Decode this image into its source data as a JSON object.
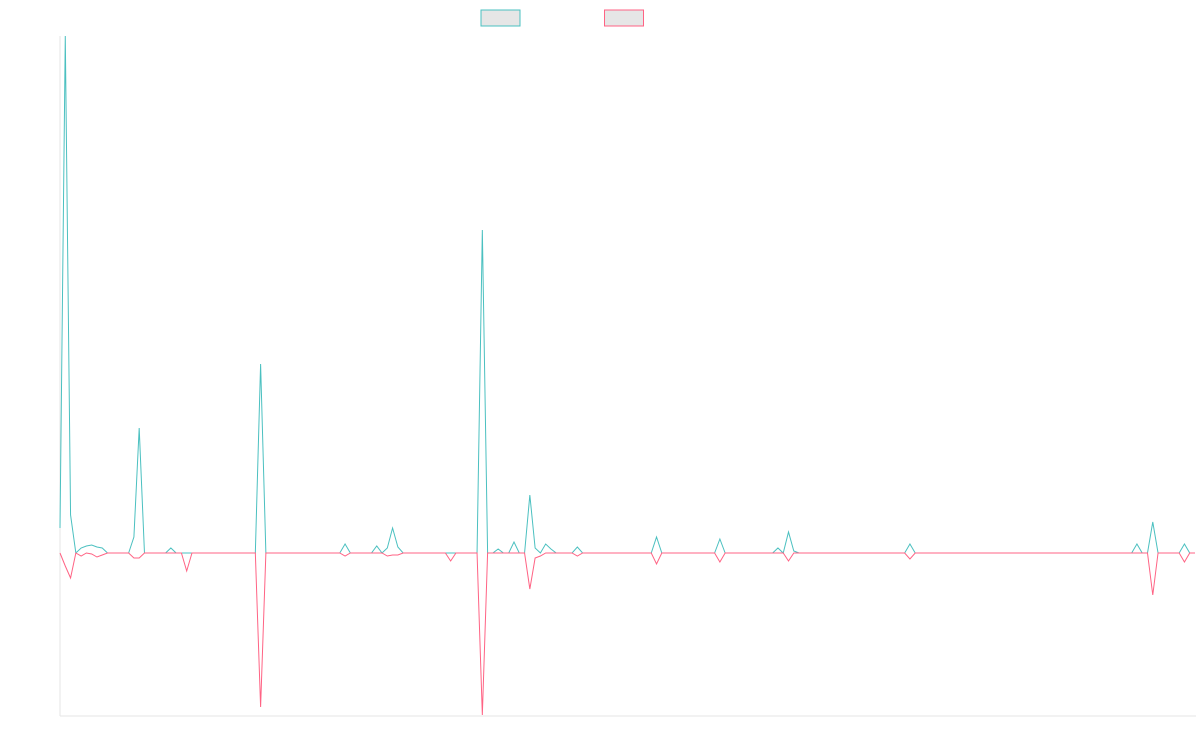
{
  "chart_data": {
    "type": "line",
    "ylim": [
      -163,
      517
    ],
    "series": [
      {
        "color": "#4bc0c0",
        "values": [
          25,
          517,
          38,
          0,
          5,
          7,
          8,
          6,
          5,
          0,
          0,
          0,
          0,
          0,
          16,
          125,
          0,
          0,
          0,
          0,
          0,
          5,
          0,
          0,
          0,
          0,
          0,
          0,
          0,
          0,
          0,
          0,
          0,
          0,
          0,
          0,
          0,
          0,
          189,
          0,
          0,
          0,
          0,
          0,
          0,
          0,
          0,
          0,
          0,
          0,
          0,
          0,
          0,
          0,
          9,
          0,
          0,
          0,
          0,
          0,
          7,
          0,
          5,
          25,
          6,
          0,
          0,
          0,
          0,
          0,
          0,
          0,
          0,
          0,
          0,
          0,
          0,
          0,
          0,
          0,
          323,
          0,
          0,
          4,
          0,
          0,
          11,
          0,
          0,
          58,
          5,
          0,
          9,
          4,
          0,
          0,
          0,
          0,
          6,
          0,
          0,
          0,
          0,
          0,
          0,
          0,
          0,
          0,
          0,
          0,
          0,
          0,
          0,
          16,
          0,
          0,
          0,
          0,
          0,
          0,
          0,
          0,
          0,
          0,
          0,
          14,
          0,
          0,
          0,
          0,
          0,
          0,
          0,
          0,
          0,
          0,
          5,
          0,
          21,
          2,
          0,
          0,
          0,
          0,
          0,
          0,
          0,
          0,
          0,
          0,
          0,
          0,
          0,
          0,
          0,
          0,
          0,
          0,
          0,
          0,
          0,
          9,
          0,
          0,
          0,
          0,
          0,
          0,
          0,
          0,
          0,
          0,
          0,
          0,
          0,
          0,
          0,
          0,
          0,
          0,
          0,
          0,
          0,
          0,
          0,
          0,
          0,
          0,
          0,
          0,
          0,
          0,
          0,
          0,
          0,
          0,
          0,
          0,
          0,
          0,
          0,
          0,
          0,
          0,
          9,
          0,
          0,
          31,
          0,
          0,
          0,
          0,
          0,
          9,
          0,
          0
        ]
      },
      {
        "color": "#ff6384",
        "values": [
          0,
          -13,
          -25,
          0,
          -3,
          0,
          -1,
          -4,
          -2,
          0,
          0,
          0,
          0,
          0,
          -5,
          -5,
          0,
          0,
          0,
          0,
          0,
          0,
          0,
          0,
          -18,
          0,
          0,
          0,
          0,
          0,
          0,
          0,
          0,
          0,
          0,
          0,
          0,
          0,
          -154,
          0,
          0,
          0,
          0,
          0,
          0,
          0,
          0,
          0,
          0,
          0,
          0,
          0,
          0,
          0,
          -3,
          0,
          0,
          0,
          0,
          0,
          0,
          0,
          -3,
          -2,
          -2,
          0,
          0,
          0,
          0,
          0,
          0,
          0,
          0,
          0,
          -8,
          0,
          0,
          0,
          0,
          0,
          -162,
          0,
          0,
          0,
          0,
          0,
          0,
          0,
          0,
          -36,
          -5,
          -3,
          0,
          0,
          0,
          0,
          0,
          0,
          -3,
          0,
          0,
          0,
          0,
          0,
          0,
          0,
          0,
          0,
          0,
          0,
          0,
          0,
          0,
          -11,
          0,
          0,
          0,
          0,
          0,
          0,
          0,
          0,
          0,
          0,
          0,
          -9,
          0,
          0,
          0,
          0,
          0,
          0,
          0,
          0,
          0,
          0,
          0,
          0,
          -8,
          0,
          0,
          0,
          0,
          0,
          0,
          0,
          0,
          0,
          0,
          0,
          0,
          0,
          0,
          0,
          0,
          0,
          0,
          0,
          0,
          0,
          0,
          -6,
          0,
          0,
          0,
          0,
          0,
          0,
          0,
          0,
          0,
          0,
          0,
          0,
          0,
          0,
          0,
          0,
          0,
          0,
          0,
          0,
          0,
          0,
          0,
          0,
          0,
          0,
          0,
          0,
          0,
          0,
          0,
          0,
          0,
          0,
          0,
          0,
          0,
          0,
          0,
          0,
          0,
          0,
          0,
          0,
          0,
          -42,
          0,
          0,
          0,
          0,
          0,
          -9,
          0,
          0
        ]
      }
    ]
  }
}
